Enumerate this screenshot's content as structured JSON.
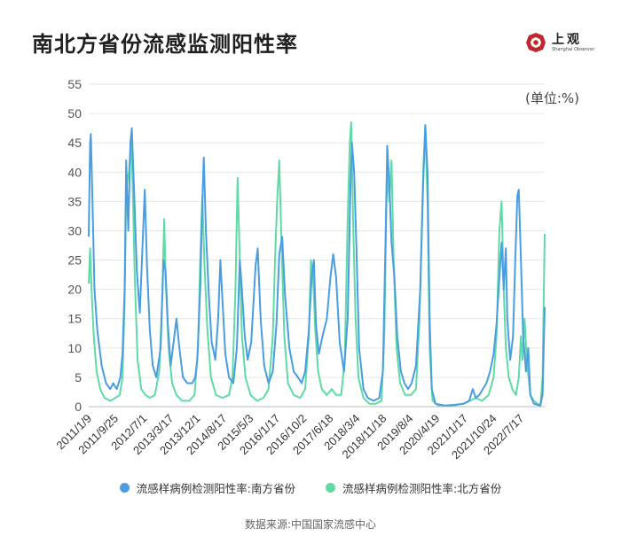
{
  "title": "南北方省份流感监测阳性率",
  "logo": {
    "name_cn": "上观",
    "name_en": "Shanghai Observer"
  },
  "unit_label": "(单位:%)",
  "source": "数据来源:中国国家流感中心",
  "colors": {
    "south": "#4a9de0",
    "north": "#5fdaa4",
    "grid": "#e6e6e6",
    "logo": "#c0282d"
  },
  "chart_data": {
    "type": "line",
    "title": "南北方省份流感监测阳性率",
    "ylabel": "(单位:%)",
    "ylim": [
      0,
      55
    ],
    "yticks": [
      0,
      5,
      10,
      15,
      20,
      25,
      30,
      35,
      40,
      45,
      50,
      55
    ],
    "xlim": [
      "2011-01-09",
      "2023-03-05"
    ],
    "xticks": [
      "2011/1/9",
      "2011/9/25",
      "2012/7/1",
      "2013/3/17",
      "2013/12/1",
      "2014/8/17",
      "2015/5/3",
      "2016/1/17",
      "2016/10/2",
      "2017/6/18",
      "2018/3/4",
      "2018/11/18",
      "2019/8/4",
      "2020/4/19",
      "2021/1/17",
      "2021/10/24",
      "2022/7/17"
    ],
    "series": [
      {
        "name": "流感样病例检测阳性率:南方省份",
        "color": "#4a9de0",
        "points": [
          [
            "2011-01-09",
            29
          ],
          [
            "2011-01-23",
            45
          ],
          [
            "2011-01-30",
            46.5
          ],
          [
            "2011-02-13",
            36
          ],
          [
            "2011-03-06",
            20
          ],
          [
            "2011-04-03",
            13
          ],
          [
            "2011-05-15",
            7
          ],
          [
            "2011-06-26",
            4
          ],
          [
            "2011-08-07",
            3
          ],
          [
            "2011-09-04",
            4
          ],
          [
            "2011-10-09",
            3
          ],
          [
            "2011-11-13",
            5
          ],
          [
            "2011-12-04",
            9
          ],
          [
            "2011-12-25",
            20
          ],
          [
            "2012-01-08",
            42
          ],
          [
            "2012-01-29",
            30
          ],
          [
            "2012-02-19",
            45
          ],
          [
            "2012-03-04",
            47.5
          ],
          [
            "2012-03-25",
            37
          ],
          [
            "2012-04-22",
            23
          ],
          [
            "2012-05-20",
            16
          ],
          [
            "2012-06-17",
            28
          ],
          [
            "2012-07-08",
            37
          ],
          [
            "2012-07-29",
            24
          ],
          [
            "2012-08-26",
            13
          ],
          [
            "2012-09-23",
            7
          ],
          [
            "2012-10-28",
            5
          ],
          [
            "2012-12-09",
            10
          ],
          [
            "2013-01-06",
            25
          ],
          [
            "2013-01-27",
            23
          ],
          [
            "2013-02-17",
            14
          ],
          [
            "2013-03-17",
            7
          ],
          [
            "2013-04-14",
            11
          ],
          [
            "2013-05-12",
            15
          ],
          [
            "2013-06-09",
            10
          ],
          [
            "2013-07-14",
            5
          ],
          [
            "2013-08-25",
            4
          ],
          [
            "2013-10-13",
            4
          ],
          [
            "2013-11-10",
            5
          ],
          [
            "2013-12-01",
            8
          ],
          [
            "2013-12-29",
            20
          ],
          [
            "2014-01-19",
            35
          ],
          [
            "2014-02-02",
            42.5
          ],
          [
            "2014-02-23",
            30
          ],
          [
            "2014-03-23",
            19
          ],
          [
            "2014-04-20",
            11
          ],
          [
            "2014-05-25",
            8
          ],
          [
            "2014-06-22",
            15
          ],
          [
            "2014-07-13",
            25
          ],
          [
            "2014-08-03",
            18
          ],
          [
            "2014-08-31",
            9
          ],
          [
            "2014-10-05",
            5
          ],
          [
            "2014-11-16",
            4
          ],
          [
            "2014-12-21",
            10
          ],
          [
            "2015-01-18",
            25
          ],
          [
            "2015-02-08",
            20
          ],
          [
            "2015-03-08",
            12
          ],
          [
            "2015-04-05",
            8
          ],
          [
            "2015-05-10",
            11
          ],
          [
            "2015-06-21",
            24
          ],
          [
            "2015-07-12",
            27
          ],
          [
            "2015-08-09",
            15
          ],
          [
            "2015-09-13",
            7
          ],
          [
            "2015-10-25",
            4
          ],
          [
            "2015-12-06",
            6
          ],
          [
            "2016-01-10",
            14
          ],
          [
            "2016-02-07",
            26
          ],
          [
            "2016-03-06",
            29
          ],
          [
            "2016-04-03",
            19
          ],
          [
            "2016-05-15",
            10
          ],
          [
            "2016-06-26",
            6
          ],
          [
            "2016-08-07",
            5
          ],
          [
            "2016-09-11",
            4
          ],
          [
            "2016-10-16",
            6
          ],
          [
            "2016-11-20",
            13
          ],
          [
            "2016-12-18",
            22
          ],
          [
            "2017-01-08",
            25
          ],
          [
            "2017-01-29",
            14
          ],
          [
            "2017-02-26",
            9
          ],
          [
            "2017-04-02",
            12
          ],
          [
            "2017-05-14",
            15
          ],
          [
            "2017-06-18",
            22
          ],
          [
            "2017-07-16",
            26
          ],
          [
            "2017-08-13",
            22
          ],
          [
            "2017-09-17",
            11
          ],
          [
            "2017-10-29",
            6
          ],
          [
            "2017-12-03",
            15
          ],
          [
            "2017-12-31",
            38
          ],
          [
            "2018-01-14",
            45
          ],
          [
            "2018-02-04",
            40
          ],
          [
            "2018-02-25",
            28
          ],
          [
            "2018-03-25",
            10
          ],
          [
            "2018-05-06",
            3
          ],
          [
            "2018-06-17",
            1.5
          ],
          [
            "2018-08-12",
            1
          ],
          [
            "2018-10-07",
            1.5
          ],
          [
            "2018-11-11",
            6
          ],
          [
            "2018-12-09",
            30
          ],
          [
            "2018-12-23",
            44.5
          ],
          [
            "2019-01-13",
            38
          ],
          [
            "2019-02-03",
            28
          ],
          [
            "2019-03-03",
            22
          ],
          [
            "2019-03-31",
            12
          ],
          [
            "2019-05-05",
            6
          ],
          [
            "2019-06-09",
            4
          ],
          [
            "2019-07-14",
            3
          ],
          [
            "2019-08-18",
            4
          ],
          [
            "2019-09-29",
            7
          ],
          [
            "2019-11-10",
            20
          ],
          [
            "2019-12-08",
            38
          ],
          [
            "2019-12-29",
            48
          ],
          [
            "2020-01-19",
            40
          ],
          [
            "2020-02-09",
            15
          ],
          [
            "2020-03-01",
            3
          ],
          [
            "2020-04-05",
            0.5
          ],
          [
            "2020-07-05",
            0.2
          ],
          [
            "2020-10-04",
            0.3
          ],
          [
            "2021-01-03",
            0.5
          ],
          [
            "2021-02-28",
            1
          ],
          [
            "2021-04-04",
            3
          ],
          [
            "2021-05-02",
            1.5
          ],
          [
            "2021-06-06",
            2
          ],
          [
            "2021-07-11",
            3
          ],
          [
            "2021-08-15",
            4
          ],
          [
            "2021-09-19",
            6
          ],
          [
            "2021-10-24",
            9
          ],
          [
            "2021-11-21",
            14
          ],
          [
            "2021-12-19",
            22
          ],
          [
            "2022-01-09",
            28
          ],
          [
            "2022-01-30",
            20
          ],
          [
            "2022-02-20",
            27
          ],
          [
            "2022-03-06",
            15
          ],
          [
            "2022-04-03",
            8
          ],
          [
            "2022-05-01",
            12
          ],
          [
            "2022-05-22",
            25
          ],
          [
            "2022-06-12",
            36
          ],
          [
            "2022-06-26",
            37
          ],
          [
            "2022-07-17",
            25
          ],
          [
            "2022-08-07",
            12
          ],
          [
            "2022-09-04",
            6
          ],
          [
            "2022-09-25",
            10
          ],
          [
            "2022-10-16",
            2
          ],
          [
            "2022-11-20",
            0.5
          ],
          [
            "2022-12-25",
            0.3
          ],
          [
            "2023-01-22",
            0.2
          ],
          [
            "2023-02-12",
            2
          ],
          [
            "2023-03-05",
            17
          ]
        ]
      },
      {
        "name": "流感样病例检测阳性率:北方省份",
        "color": "#5fdaa4",
        "points": [
          [
            "2011-01-09",
            21
          ],
          [
            "2011-01-23",
            27
          ],
          [
            "2011-02-06",
            20
          ],
          [
            "2011-02-27",
            12
          ],
          [
            "2011-03-27",
            6
          ],
          [
            "2011-05-01",
            3
          ],
          [
            "2011-06-12",
            1.5
          ],
          [
            "2011-08-07",
            1
          ],
          [
            "2011-09-25",
            1.5
          ],
          [
            "2011-11-06",
            2
          ],
          [
            "2011-12-04",
            5
          ],
          [
            "2011-12-25",
            18
          ],
          [
            "2012-01-08",
            36
          ],
          [
            "2012-01-22",
            39
          ],
          [
            "2012-02-05",
            40
          ],
          [
            "2012-02-26",
            46
          ],
          [
            "2012-03-11",
            38
          ],
          [
            "2012-04-01",
            22
          ],
          [
            "2012-04-29",
            8
          ],
          [
            "2012-06-03",
            3
          ],
          [
            "2012-07-15",
            2
          ],
          [
            "2012-08-26",
            1.5
          ],
          [
            "2012-10-14",
            2
          ],
          [
            "2012-11-25",
            6
          ],
          [
            "2012-12-23",
            18
          ],
          [
            "2013-01-13",
            32
          ],
          [
            "2013-01-27",
            22
          ],
          [
            "2013-02-24",
            10
          ],
          [
            "2013-03-31",
            4
          ],
          [
            "2013-05-12",
            2
          ],
          [
            "2013-07-07",
            1
          ],
          [
            "2013-09-15",
            1
          ],
          [
            "2013-11-03",
            2
          ],
          [
            "2013-12-08",
            10
          ],
          [
            "2013-12-29",
            25
          ],
          [
            "2014-01-19",
            36
          ],
          [
            "2014-02-09",
            24
          ],
          [
            "2014-03-09",
            13
          ],
          [
            "2014-04-13",
            5
          ],
          [
            "2014-06-01",
            2
          ],
          [
            "2014-08-03",
            1.5
          ],
          [
            "2014-10-05",
            2
          ],
          [
            "2014-11-09",
            5
          ],
          [
            "2014-12-07",
            20
          ],
          [
            "2014-12-28",
            39
          ],
          [
            "2015-01-18",
            25
          ],
          [
            "2015-02-08",
            12
          ],
          [
            "2015-03-15",
            5
          ],
          [
            "2015-05-03",
            2
          ],
          [
            "2015-07-05",
            1
          ],
          [
            "2015-09-06",
            1.5
          ],
          [
            "2015-10-25",
            3
          ],
          [
            "2015-12-06",
            12
          ],
          [
            "2015-12-27",
            25
          ],
          [
            "2016-01-17",
            35
          ],
          [
            "2016-02-07",
            42
          ],
          [
            "2016-02-28",
            28
          ],
          [
            "2016-03-27",
            12
          ],
          [
            "2016-05-01",
            4
          ],
          [
            "2016-06-26",
            2
          ],
          [
            "2016-08-28",
            1.5
          ],
          [
            "2016-10-16",
            3
          ],
          [
            "2016-11-20",
            12
          ],
          [
            "2016-12-11",
            25
          ],
          [
            "2017-01-01",
            22
          ],
          [
            "2017-01-22",
            13
          ],
          [
            "2017-02-19",
            6
          ],
          [
            "2017-03-26",
            3
          ],
          [
            "2017-05-14",
            2
          ],
          [
            "2017-07-02",
            3
          ],
          [
            "2017-08-13",
            2
          ],
          [
            "2017-10-01",
            2
          ],
          [
            "2017-11-05",
            8
          ],
          [
            "2017-12-03",
            32
          ],
          [
            "2017-12-24",
            45
          ],
          [
            "2018-01-07",
            48.5
          ],
          [
            "2018-01-28",
            30
          ],
          [
            "2018-02-18",
            15
          ],
          [
            "2018-03-18",
            5
          ],
          [
            "2018-05-06",
            1.5
          ],
          [
            "2018-07-01",
            0.5
          ],
          [
            "2018-09-02",
            0.5
          ],
          [
            "2018-10-28",
            1
          ],
          [
            "2018-11-25",
            12
          ],
          [
            "2018-12-16",
            35
          ],
          [
            "2018-12-30",
            40
          ],
          [
            "2019-01-13",
            35
          ],
          [
            "2019-02-03",
            42
          ],
          [
            "2019-02-24",
            25
          ],
          [
            "2019-03-24",
            10
          ],
          [
            "2019-04-28",
            4
          ],
          [
            "2019-06-16",
            2
          ],
          [
            "2019-08-11",
            2
          ],
          [
            "2019-09-29",
            3
          ],
          [
            "2019-11-03",
            15
          ],
          [
            "2019-12-08",
            40
          ],
          [
            "2019-12-29",
            48
          ],
          [
            "2020-01-19",
            35
          ],
          [
            "2020-02-09",
            10
          ],
          [
            "2020-03-08",
            1
          ],
          [
            "2020-05-03",
            0.2
          ],
          [
            "2020-10-04",
            0.2
          ],
          [
            "2021-01-03",
            0.5
          ],
          [
            "2021-03-07",
            1
          ],
          [
            "2021-05-02",
            1.5
          ],
          [
            "2021-07-04",
            1
          ],
          [
            "2021-09-05",
            2
          ],
          [
            "2021-10-24",
            5
          ],
          [
            "2021-11-21",
            12
          ],
          [
            "2021-12-19",
            30
          ],
          [
            "2022-01-09",
            35
          ],
          [
            "2022-01-30",
            20
          ],
          [
            "2022-02-20",
            10
          ],
          [
            "2022-03-20",
            5
          ],
          [
            "2022-04-24",
            3
          ],
          [
            "2022-05-29",
            2
          ],
          [
            "2022-06-26",
            5
          ],
          [
            "2022-07-17",
            12
          ],
          [
            "2022-07-31",
            8
          ],
          [
            "2022-08-21",
            15
          ],
          [
            "2022-09-11",
            8
          ],
          [
            "2022-10-16",
            2
          ],
          [
            "2022-11-20",
            1
          ],
          [
            "2022-12-25",
            0.5
          ],
          [
            "2023-01-22",
            0.3
          ],
          [
            "2023-02-12",
            5
          ],
          [
            "2023-03-05",
            29.5
          ]
        ]
      }
    ]
  }
}
